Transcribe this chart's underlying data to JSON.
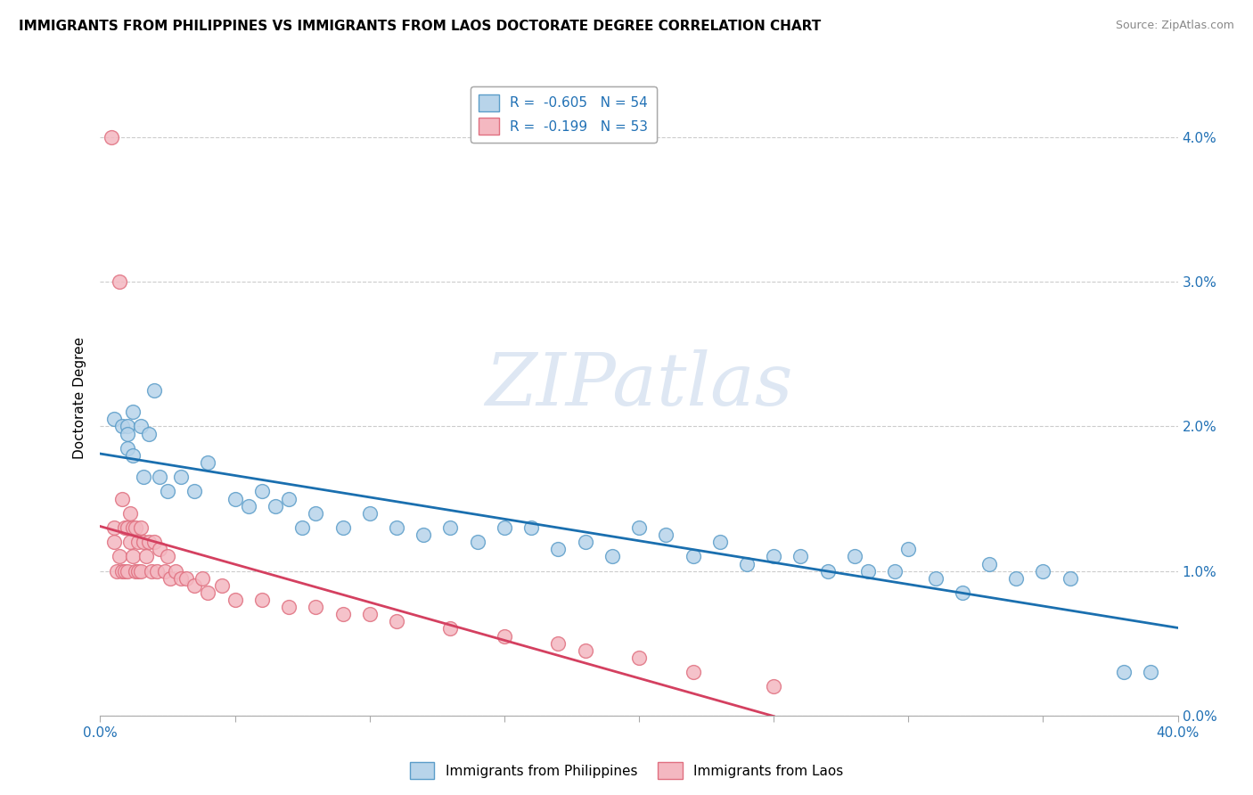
{
  "title": "IMMIGRANTS FROM PHILIPPINES VS IMMIGRANTS FROM LAOS DOCTORATE DEGREE CORRELATION CHART",
  "source": "Source: ZipAtlas.com",
  "ylabel": "Doctorate Degree",
  "xmin": 0.0,
  "xmax": 0.4,
  "ymin": 0.0,
  "ymax": 0.044,
  "ytick_vals": [
    0.0,
    0.01,
    0.02,
    0.03,
    0.04
  ],
  "ytick_labels": [
    "0.0%",
    "1.0%",
    "2.0%",
    "3.0%",
    "4.0%"
  ],
  "legend1_r": "-0.605",
  "legend1_n": "54",
  "legend2_r": "-0.199",
  "legend2_n": "53",
  "philippines_color": "#b8d4ea",
  "laos_color": "#f4b8c1",
  "philippines_edge": "#5b9dc9",
  "laos_edge": "#e07080",
  "trendline1_color": "#1a6faf",
  "trendline2_color": "#d44060",
  "trendline2_dash": "--",
  "watermark_text": "ZIPatlas",
  "phil_bottom_label": "Immigrants from Philippines",
  "laos_bottom_label": "Immigrants from Laos",
  "philippines_x": [
    0.005,
    0.008,
    0.01,
    0.01,
    0.01,
    0.012,
    0.012,
    0.015,
    0.016,
    0.018,
    0.02,
    0.022,
    0.025,
    0.03,
    0.035,
    0.04,
    0.05,
    0.055,
    0.06,
    0.065,
    0.07,
    0.075,
    0.08,
    0.09,
    0.1,
    0.11,
    0.12,
    0.13,
    0.14,
    0.15,
    0.16,
    0.17,
    0.18,
    0.19,
    0.2,
    0.21,
    0.22,
    0.23,
    0.24,
    0.25,
    0.26,
    0.27,
    0.28,
    0.285,
    0.295,
    0.3,
    0.31,
    0.32,
    0.33,
    0.34,
    0.35,
    0.36,
    0.38,
    0.39
  ],
  "philippines_y": [
    0.0205,
    0.02,
    0.02,
    0.0195,
    0.0185,
    0.021,
    0.018,
    0.02,
    0.0165,
    0.0195,
    0.0225,
    0.0165,
    0.0155,
    0.0165,
    0.0155,
    0.0175,
    0.015,
    0.0145,
    0.0155,
    0.0145,
    0.015,
    0.013,
    0.014,
    0.013,
    0.014,
    0.013,
    0.0125,
    0.013,
    0.012,
    0.013,
    0.013,
    0.0115,
    0.012,
    0.011,
    0.013,
    0.0125,
    0.011,
    0.012,
    0.0105,
    0.011,
    0.011,
    0.01,
    0.011,
    0.01,
    0.01,
    0.0115,
    0.0095,
    0.0085,
    0.0105,
    0.0095,
    0.01,
    0.0095,
    0.003,
    0.003
  ],
  "laos_x": [
    0.004,
    0.005,
    0.005,
    0.006,
    0.007,
    0.007,
    0.008,
    0.008,
    0.009,
    0.009,
    0.01,
    0.01,
    0.011,
    0.011,
    0.012,
    0.012,
    0.013,
    0.013,
    0.014,
    0.014,
    0.015,
    0.015,
    0.016,
    0.017,
    0.018,
    0.019,
    0.02,
    0.021,
    0.022,
    0.024,
    0.025,
    0.026,
    0.028,
    0.03,
    0.032,
    0.035,
    0.038,
    0.04,
    0.045,
    0.05,
    0.06,
    0.07,
    0.08,
    0.09,
    0.1,
    0.11,
    0.13,
    0.15,
    0.17,
    0.18,
    0.2,
    0.22,
    0.25
  ],
  "laos_y": [
    0.04,
    0.013,
    0.012,
    0.01,
    0.03,
    0.011,
    0.015,
    0.01,
    0.013,
    0.01,
    0.013,
    0.01,
    0.014,
    0.012,
    0.013,
    0.011,
    0.013,
    0.01,
    0.012,
    0.01,
    0.013,
    0.01,
    0.012,
    0.011,
    0.012,
    0.01,
    0.012,
    0.01,
    0.0115,
    0.01,
    0.011,
    0.0095,
    0.01,
    0.0095,
    0.0095,
    0.009,
    0.0095,
    0.0085,
    0.009,
    0.008,
    0.008,
    0.0075,
    0.0075,
    0.007,
    0.007,
    0.0065,
    0.006,
    0.0055,
    0.005,
    0.0045,
    0.004,
    0.003,
    0.002
  ]
}
